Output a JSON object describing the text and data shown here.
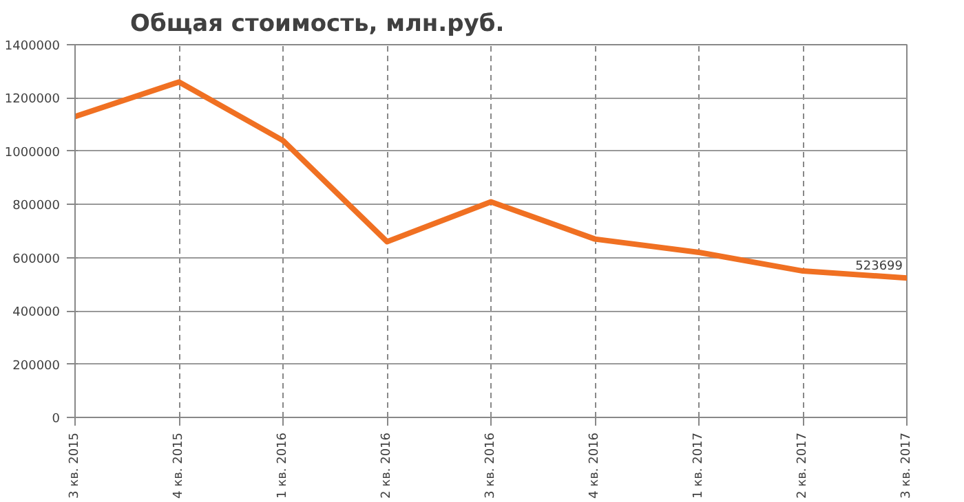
{
  "chart_data": {
    "type": "line",
    "title": "Общая стоимость, млн.руб.",
    "categories": [
      "3 кв. 2015",
      "4 кв. 2015",
      "1 кв. 2016",
      "2 кв. 2016",
      "3 кв. 2016",
      "4 кв. 2016",
      "1 кв. 2017",
      "2 кв. 2017",
      "3 кв. 2017"
    ],
    "series": [
      {
        "color": "#f07022",
        "values": [
          1130000,
          1260000,
          1040000,
          660000,
          810000,
          670000,
          620000,
          550000,
          523699
        ],
        "value_labels": [
          null,
          null,
          null,
          null,
          null,
          null,
          null,
          null,
          "523699"
        ]
      }
    ],
    "ylim": [
      0,
      1400000
    ],
    "yticks": [
      0,
      200000,
      400000,
      600000,
      800000,
      1000000,
      1200000,
      1400000
    ],
    "grid": true,
    "marker": "none",
    "line_style": "solid"
  }
}
